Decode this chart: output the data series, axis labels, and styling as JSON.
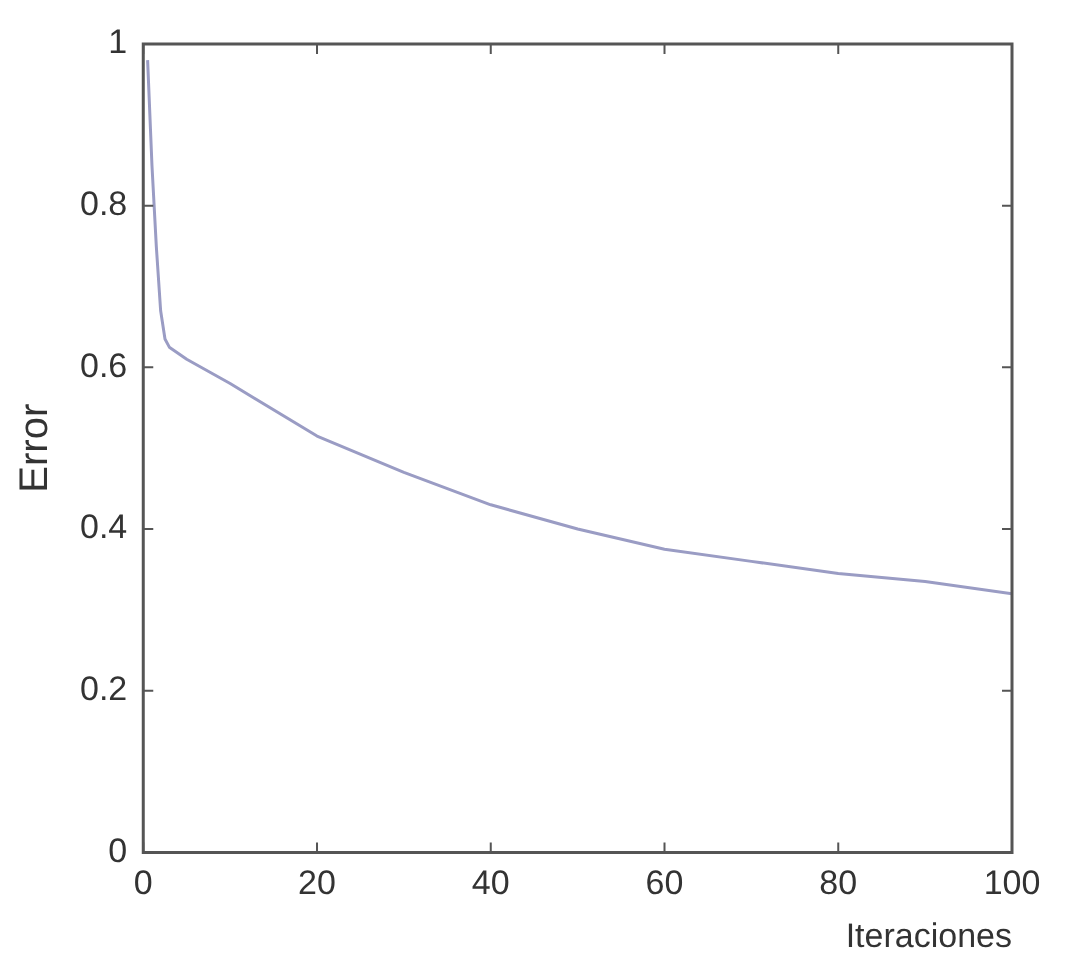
{
  "chart_data": {
    "type": "line",
    "xlabel": "Iteraciones",
    "ylabel": "Error",
    "x": [
      0.5,
      1,
      1.5,
      2,
      2.5,
      3,
      5,
      10,
      20,
      30,
      40,
      50,
      60,
      70,
      80,
      90,
      100
    ],
    "series": [
      {
        "color": "#9a9cc4",
        "values": [
          0.98,
          0.85,
          0.75,
          0.67,
          0.635,
          0.625,
          0.61,
          0.58,
          0.515,
          0.47,
          0.43,
          0.4,
          0.375,
          0.36,
          0.345,
          0.335,
          0.32
        ]
      }
    ],
    "xlim": [
      0,
      100
    ],
    "xticks": [
      0,
      20,
      40,
      60,
      80,
      100
    ],
    "ylim": [
      0,
      1
    ],
    "yticks": [
      0,
      0.2,
      0.4,
      0.6,
      0.8,
      1
    ],
    "grid": false,
    "legend": false,
    "marker": "none",
    "line_style": "solid"
  }
}
